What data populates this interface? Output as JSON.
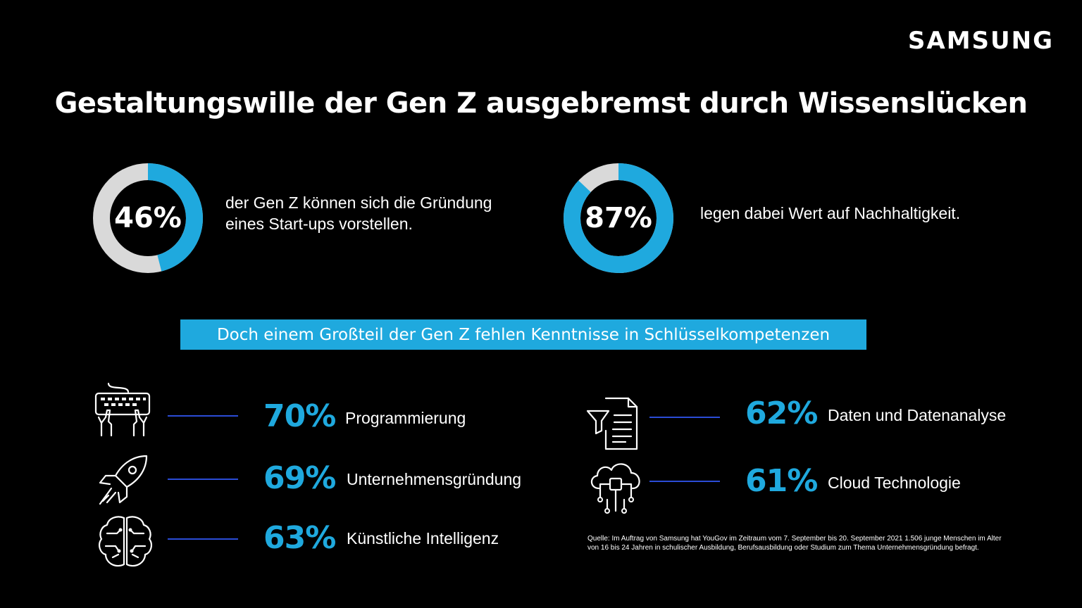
{
  "brand": "SAMSUNG",
  "title": "Gestaltungswille der Gen Z ausgebremst durch Wissenslücken",
  "colors": {
    "accent": "#1fa9de",
    "track": "#d9d9d9",
    "line": "#2b4cd6",
    "background": "#000000"
  },
  "stats": [
    {
      "value_label": "46%",
      "text_line1": "der Gen Z können sich die Gründung",
      "text_line2": "eines Start-ups vorstellen."
    },
    {
      "value_label": "87%",
      "text_line1": "legen dabei Wert auf Nachhaltigkeit.",
      "text_line2": ""
    }
  ],
  "banner": "Doch einem Großteil der Gen Z fehlen Kenntnisse in Schlüsselkompetenzen",
  "skills": [
    {
      "icon": "keyboard-icon",
      "pct": "70%",
      "label": "Programmierung"
    },
    {
      "icon": "rocket-icon",
      "pct": "69%",
      "label": "Unternehmensgründung"
    },
    {
      "icon": "brain-icon",
      "pct": "63%",
      "label": "Künstliche Intelligenz"
    },
    {
      "icon": "data-filter-icon",
      "pct": "62%",
      "label": "Daten und Datenanalyse"
    },
    {
      "icon": "cloud-icon",
      "pct": "61%",
      "label": "Cloud Technologie"
    }
  ],
  "source_line1": "Quelle: Im Auftrag von Samsung hat YouGov im Zeitraum vom 7. September bis 20. September 2021 1.506 junge Menschen im Alter",
  "source_line2": "von 16 bis 24 Jahren in schulischer Ausbildung, Berufsausbildung oder Studium zum Thema Unternehmensgründung befragt.",
  "chart_data": {
    "type": "pie",
    "title": "Gestaltungswille der Gen Z ausgebremst durch Wissenslücken",
    "donuts": [
      {
        "label": "der Gen Z können sich die Gründung eines Start-ups vorstellen.",
        "value": 46
      },
      {
        "label": "legen dabei Wert auf Nachhaltigkeit.",
        "value": 87
      }
    ],
    "skills_gap": {
      "categories": [
        "Programmierung",
        "Unternehmensgründung",
        "Künstliche Intelligenz",
        "Daten und Datenanalyse",
        "Cloud Technologie"
      ],
      "values": [
        70,
        69,
        63,
        62,
        61
      ],
      "unit": "%"
    }
  }
}
